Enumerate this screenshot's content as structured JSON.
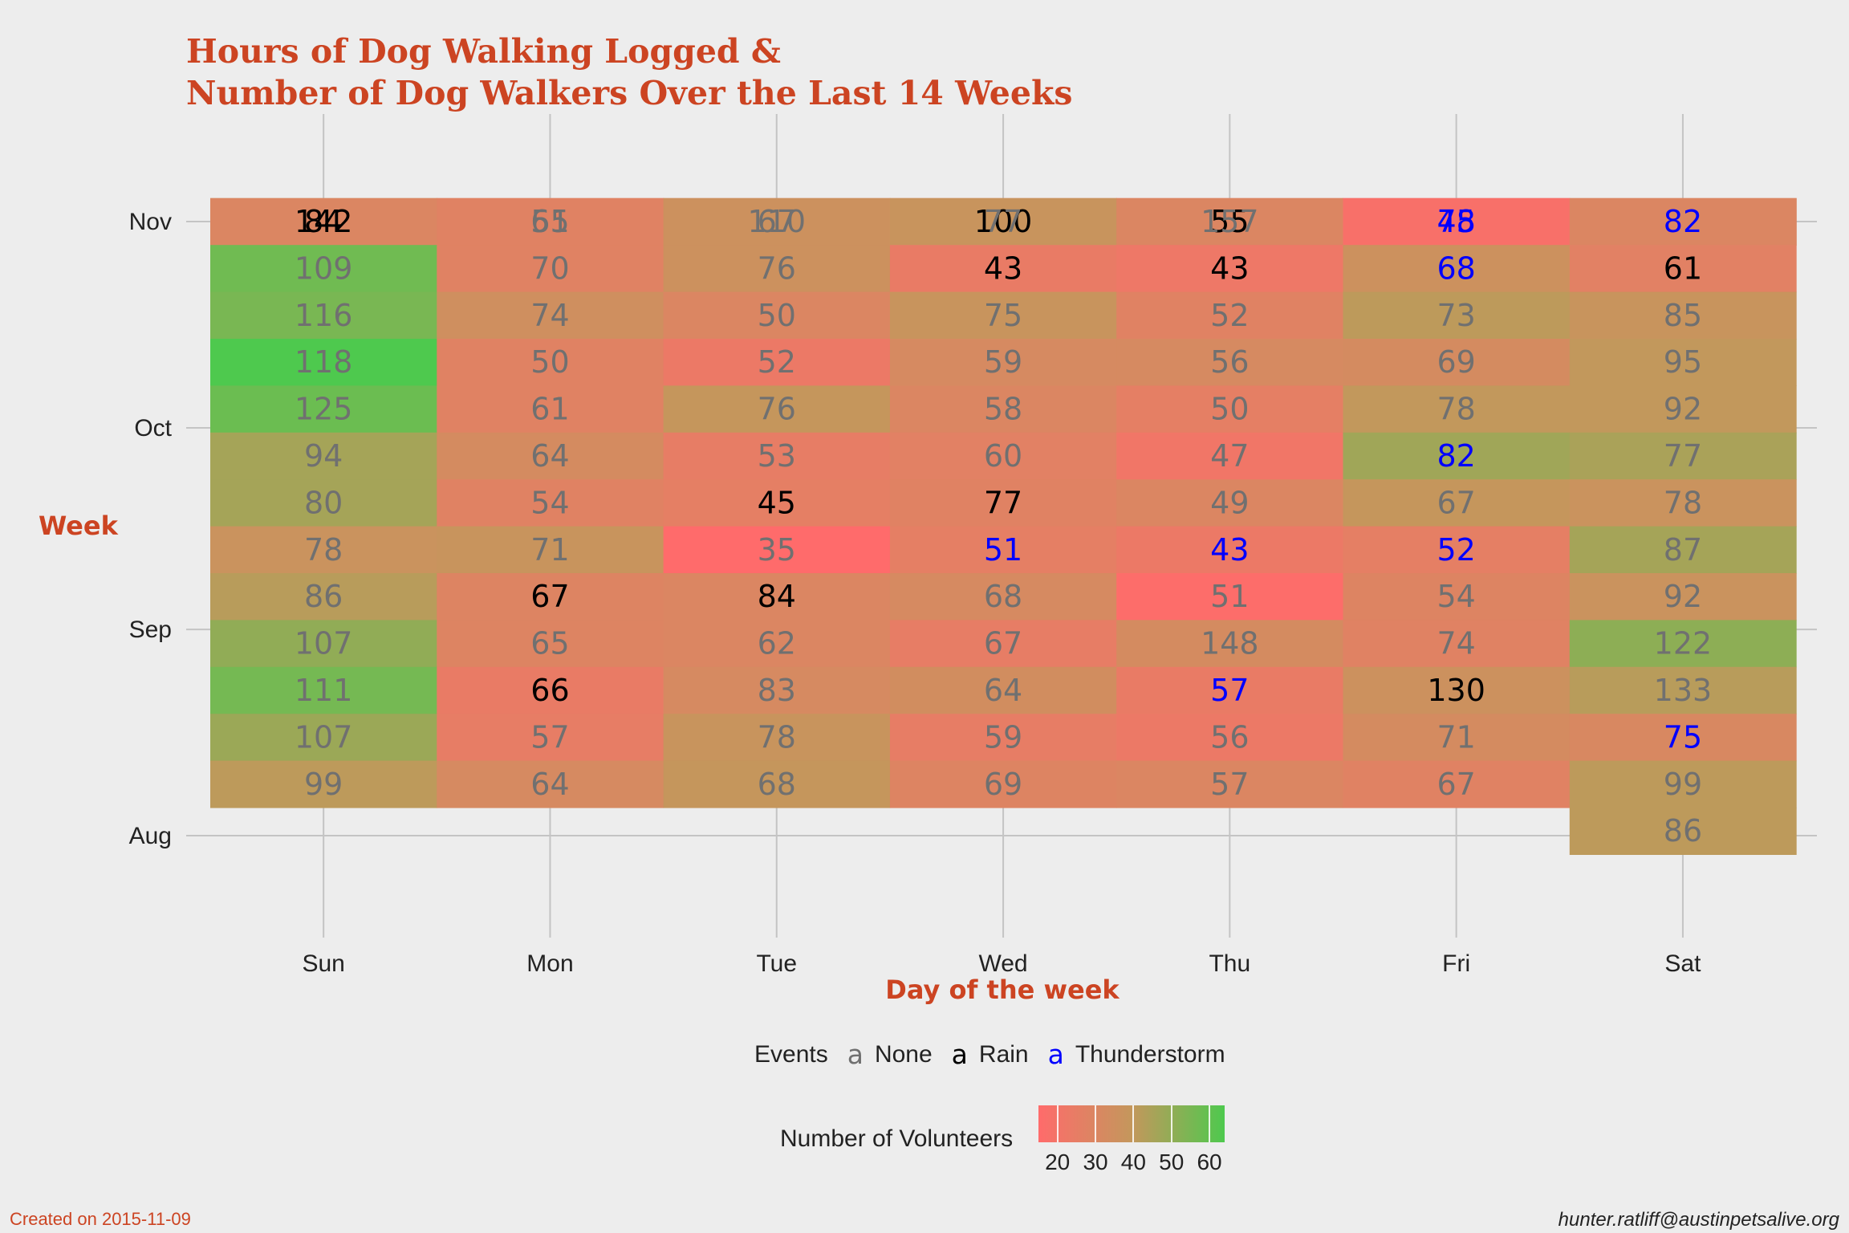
{
  "chart_data": {
    "type": "heatmap",
    "title_lines": [
      "Hours of Dog Walking Logged &",
      "Number of Dog Walkers Over the Last 14 Weeks"
    ],
    "xlabel": "Day of the week",
    "ylabel": "Week",
    "x_categories": [
      "Sun",
      "Mon",
      "Tue",
      "Wed",
      "Thu",
      "Fri",
      "Sat"
    ],
    "y_ticks": [
      "Nov",
      "Oct",
      "Sep",
      "Aug"
    ],
    "y_tick_weeks": [
      0,
      4.4,
      8.7,
      13.1
    ],
    "grid": true,
    "legend_position": "bottom",
    "events_legend": {
      "title": "Events",
      "glyph": "a",
      "items": [
        {
          "name": "None",
          "color": "#707070"
        },
        {
          "name": "Rain",
          "color": "#000000"
        },
        {
          "name": "Thunderstorm",
          "color": "#0000ff"
        }
      ]
    },
    "volunteers_legend": {
      "title": "Number of Volunteers",
      "range": [
        15,
        64
      ],
      "ticks": [
        20,
        30,
        40,
        50,
        60
      ],
      "low_color": "#ff6b6b",
      "mid_color": "#c4975c",
      "high_color": "#4ec94e"
    },
    "weeks": [
      {
        "offset": 0,
        "cells": [
          {
            "hours": 84,
            "volunteers": 40,
            "event": "Rain"
          },
          {
            "hours": 61,
            "volunteers": 29,
            "event": "None"
          },
          {
            "hours": 67,
            "volunteers": 27,
            "event": "None"
          },
          {
            "hours": 100,
            "volunteers": 29,
            "event": "Rain"
          },
          {
            "hours": 55,
            "volunteers": 21,
            "event": "Rain"
          },
          {
            "hours": 45,
            "volunteers": 17,
            "event": "Thunderstorm"
          },
          {
            "hours": null,
            "volunteers": 29,
            "event": "None"
          }
        ]
      },
      {
        "offset": -1,
        "cells": [
          {
            "hours": 142,
            "volunteers": 30,
            "event": "Rain"
          },
          {
            "hours": 55,
            "volunteers": 28,
            "event": "None"
          },
          {
            "hours": 110,
            "volunteers": 36,
            "event": "None"
          },
          {
            "hours": 77,
            "volunteers": 38,
            "event": "None"
          },
          {
            "hours": 157,
            "volunteers": 30,
            "event": "None"
          },
          {
            "hours": 78,
            "volunteers": 18,
            "event": "Thunderstorm"
          },
          {
            "hours": 82,
            "volunteers": 30,
            "event": "Thunderstorm"
          }
        ]
      },
      {
        "offset": -1,
        "cells": [
          {
            "hours": 109,
            "volunteers": 57,
            "event": "None"
          },
          {
            "hours": 70,
            "volunteers": 28,
            "event": "None"
          },
          {
            "hours": 76,
            "volunteers": 36,
            "event": "None"
          },
          {
            "hours": 43,
            "volunteers": 24,
            "event": "Rain"
          },
          {
            "hours": 43,
            "volunteers": 22,
            "event": "Rain"
          },
          {
            "hours": 68,
            "volunteers": 36,
            "event": "Thunderstorm"
          },
          {
            "hours": 61,
            "volunteers": 27,
            "event": "Rain"
          }
        ]
      },
      {
        "offset": -1,
        "cells": [
          {
            "hours": 116,
            "volunteers": 55,
            "event": "None"
          },
          {
            "hours": 74,
            "volunteers": 35,
            "event": "None"
          },
          {
            "hours": 50,
            "volunteers": 30,
            "event": "None"
          },
          {
            "hours": 75,
            "volunteers": 38,
            "event": "None"
          },
          {
            "hours": 52,
            "volunteers": 28,
            "event": "None"
          },
          {
            "hours": 73,
            "volunteers": 41,
            "event": "None"
          },
          {
            "hours": 85,
            "volunteers": 38,
            "event": "None"
          }
        ]
      },
      {
        "offset": -1,
        "cells": [
          {
            "hours": 118,
            "volunteers": 64,
            "event": "None"
          },
          {
            "hours": 50,
            "volunteers": 28,
            "event": "None"
          },
          {
            "hours": 52,
            "volunteers": 23,
            "event": "None"
          },
          {
            "hours": 59,
            "volunteers": 32,
            "event": "None"
          },
          {
            "hours": 56,
            "volunteers": 32,
            "event": "None"
          },
          {
            "hours": 69,
            "volunteers": 33,
            "event": "None"
          },
          {
            "hours": 95,
            "volunteers": 40,
            "event": "None"
          }
        ]
      },
      {
        "offset": -1,
        "cells": [
          {
            "hours": 125,
            "volunteers": 58,
            "event": "None"
          },
          {
            "hours": 61,
            "volunteers": 28,
            "event": "None"
          },
          {
            "hours": 76,
            "volunteers": 39,
            "event": "None"
          },
          {
            "hours": 58,
            "volunteers": 30,
            "event": "None"
          },
          {
            "hours": 50,
            "volunteers": 26,
            "event": "None"
          },
          {
            "hours": 78,
            "volunteers": 40,
            "event": "None"
          },
          {
            "hours": 92,
            "volunteers": 40,
            "event": "None"
          }
        ]
      },
      {
        "offset": -1,
        "cells": [
          {
            "hours": 94,
            "volunteers": 46,
            "event": "None"
          },
          {
            "hours": 64,
            "volunteers": 33,
            "event": "None"
          },
          {
            "hours": 53,
            "volunteers": 25,
            "event": "None"
          },
          {
            "hours": 60,
            "volunteers": 27,
            "event": "None"
          },
          {
            "hours": 47,
            "volunteers": 21,
            "event": "None"
          },
          {
            "hours": 82,
            "volunteers": 47,
            "event": "Thunderstorm"
          },
          {
            "hours": 77,
            "volunteers": 45,
            "event": "None"
          }
        ]
      },
      {
        "offset": -1,
        "cells": [
          {
            "hours": 80,
            "volunteers": 46,
            "event": "None"
          },
          {
            "hours": 54,
            "volunteers": 28,
            "event": "None"
          },
          {
            "hours": 45,
            "volunteers": 26,
            "event": "Rain"
          },
          {
            "hours": 77,
            "volunteers": 28,
            "event": "Rain"
          },
          {
            "hours": 49,
            "volunteers": 30,
            "event": "None"
          },
          {
            "hours": 67,
            "volunteers": 39,
            "event": "None"
          },
          {
            "hours": 78,
            "volunteers": 37,
            "event": "None"
          }
        ]
      },
      {
        "offset": -1,
        "cells": [
          {
            "hours": 78,
            "volunteers": 37,
            "event": "None"
          },
          {
            "hours": 71,
            "volunteers": 38,
            "event": "None"
          },
          {
            "hours": 35,
            "volunteers": 15,
            "event": "None"
          },
          {
            "hours": 51,
            "volunteers": 26,
            "event": "Thunderstorm"
          },
          {
            "hours": 43,
            "volunteers": 23,
            "event": "Thunderstorm"
          },
          {
            "hours": 52,
            "volunteers": 26,
            "event": "Thunderstorm"
          },
          {
            "hours": 87,
            "volunteers": 46,
            "event": "None"
          }
        ]
      },
      {
        "offset": -1,
        "cells": [
          {
            "hours": 86,
            "volunteers": 42,
            "event": "None"
          },
          {
            "hours": 67,
            "volunteers": 29,
            "event": "Rain"
          },
          {
            "hours": 84,
            "volunteers": 30,
            "event": "Rain"
          },
          {
            "hours": 68,
            "volunteers": 32,
            "event": "None"
          },
          {
            "hours": 51,
            "volunteers": 16,
            "event": "None"
          },
          {
            "hours": 54,
            "volunteers": 29,
            "event": "None"
          },
          {
            "hours": 92,
            "volunteers": 37,
            "event": "None"
          }
        ]
      },
      {
        "offset": -1,
        "cells": [
          {
            "hours": 107,
            "volunteers": 50,
            "event": "None"
          },
          {
            "hours": 65,
            "volunteers": 29,
            "event": "None"
          },
          {
            "hours": 62,
            "volunteers": 30,
            "event": "None"
          },
          {
            "hours": 67,
            "volunteers": 25,
            "event": "None"
          },
          {
            "hours": 148,
            "volunteers": 33,
            "event": "None"
          },
          {
            "hours": 74,
            "volunteers": 28,
            "event": "None"
          },
          {
            "hours": 122,
            "volunteers": 51,
            "event": "None"
          }
        ]
      },
      {
        "offset": -1,
        "cells": [
          {
            "hours": 111,
            "volunteers": 56,
            "event": "None"
          },
          {
            "hours": 66,
            "volunteers": 24,
            "event": "Rain"
          },
          {
            "hours": 83,
            "volunteers": 32,
            "event": "None"
          },
          {
            "hours": 64,
            "volunteers": 34,
            "event": "None"
          },
          {
            "hours": 57,
            "volunteers": 24,
            "event": "Thunderstorm"
          },
          {
            "hours": 130,
            "volunteers": 36,
            "event": "Rain"
          },
          {
            "hours": 133,
            "volunteers": 42,
            "event": "None"
          }
        ]
      },
      {
        "offset": -1,
        "cells": [
          {
            "hours": 107,
            "volunteers": 48,
            "event": "None"
          },
          {
            "hours": 57,
            "volunteers": 25,
            "event": "None"
          },
          {
            "hours": 78,
            "volunteers": 38,
            "event": "None"
          },
          {
            "hours": 59,
            "volunteers": 25,
            "event": "None"
          },
          {
            "hours": 56,
            "volunteers": 23,
            "event": "None"
          },
          {
            "hours": 71,
            "volunteers": 33,
            "event": "None"
          },
          {
            "hours": 75,
            "volunteers": 31,
            "event": "Thunderstorm"
          }
        ]
      },
      {
        "offset": -1,
        "cells": [
          {
            "hours": 99,
            "volunteers": 41,
            "event": "None"
          },
          {
            "hours": 64,
            "volunteers": 32,
            "event": "None"
          },
          {
            "hours": 68,
            "volunteers": 39,
            "event": "None"
          },
          {
            "hours": 69,
            "volunteers": 29,
            "event": "None"
          },
          {
            "hours": 57,
            "volunteers": 30,
            "event": "None"
          },
          {
            "hours": 67,
            "volunteers": 28,
            "event": "None"
          },
          {
            "hours": 99,
            "volunteers": 41,
            "event": "None"
          }
        ]
      },
      {
        "offset": -1,
        "cells": [
          null,
          null,
          null,
          null,
          null,
          null,
          {
            "hours": 86,
            "volunteers": 41,
            "event": "None"
          }
        ]
      }
    ]
  },
  "footer": {
    "created": "Created on 2015-11-09",
    "author": "hunter.ratliff@austinpetsalive.org"
  }
}
